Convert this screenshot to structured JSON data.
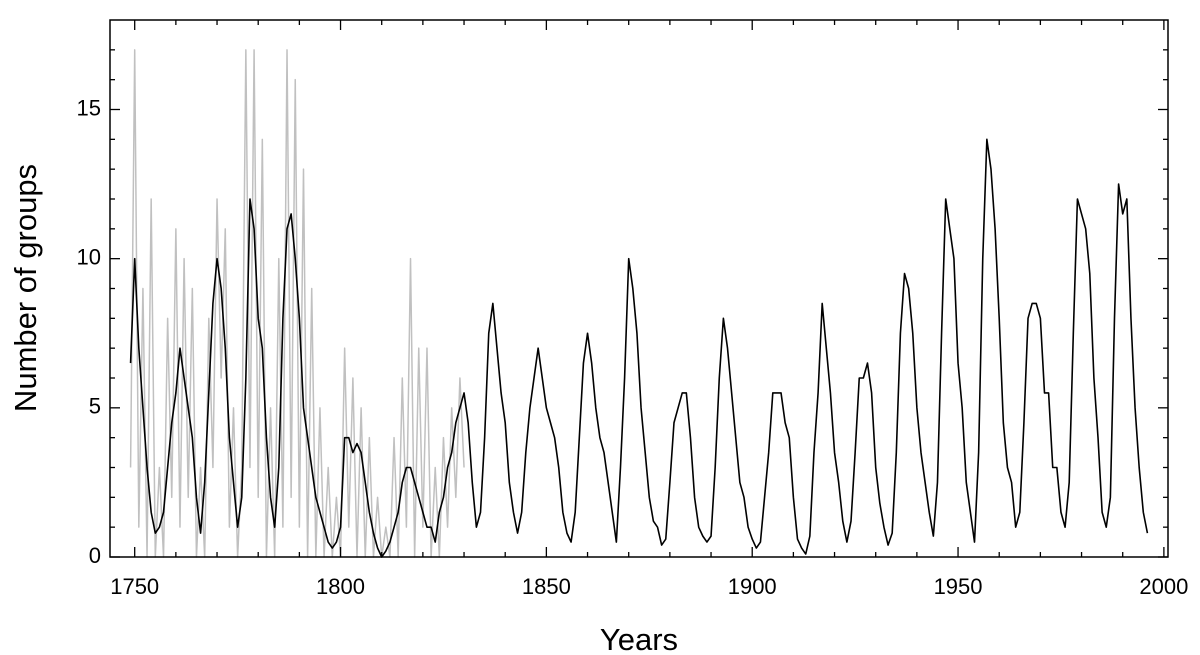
{
  "chart_data": {
    "type": "line",
    "xlabel": "Years",
    "ylabel": "Number of groups",
    "xlim": [
      1744,
      2001
    ],
    "ylim": [
      0,
      18
    ],
    "xticks": [
      1750,
      1800,
      1850,
      1900,
      1950,
      2000
    ],
    "yticks": [
      0,
      5,
      10,
      15
    ],
    "x_minor_ticks": [
      1760,
      1770,
      1780,
      1790,
      1810,
      1820,
      1830,
      1840,
      1860,
      1870,
      1880,
      1890,
      1910,
      1920,
      1930,
      1940,
      1960,
      1970,
      1980,
      1990
    ],
    "y_minor_ticks": [
      1,
      2,
      3,
      4,
      6,
      7,
      8,
      9,
      11,
      12,
      13,
      14,
      16,
      17
    ],
    "series": [
      {
        "color": "#c0c0c0",
        "x": [
          1749,
          1750,
          1751,
          1752,
          1753,
          1754,
          1755,
          1756,
          1757,
          1758,
          1759,
          1760,
          1761,
          1762,
          1763,
          1764,
          1765,
          1766,
          1767,
          1768,
          1769,
          1770,
          1771,
          1772,
          1773,
          1774,
          1775,
          1776,
          1777,
          1778,
          1779,
          1780,
          1781,
          1782,
          1783,
          1784,
          1785,
          1786,
          1787,
          1788,
          1789,
          1790,
          1791,
          1792,
          1793,
          1794,
          1795,
          1796,
          1797,
          1798,
          1799,
          1800,
          1801,
          1802,
          1803,
          1804,
          1805,
          1806,
          1807,
          1808,
          1809,
          1810,
          1811,
          1812,
          1813,
          1814,
          1815,
          1816,
          1817,
          1818,
          1819,
          1820,
          1821,
          1822,
          1823,
          1824,
          1825,
          1826,
          1827,
          1828,
          1829,
          1830
        ],
        "values": [
          3,
          17,
          1,
          9,
          0,
          12,
          0,
          3,
          0,
          8,
          2,
          11,
          1,
          10,
          2,
          9,
          0,
          3,
          0,
          8,
          3,
          12,
          6,
          11,
          1,
          5,
          0,
          3,
          17,
          3,
          17,
          2,
          14,
          0,
          5,
          0,
          10,
          1,
          17,
          2,
          16,
          1,
          13,
          0,
          9,
          0,
          5,
          0,
          3,
          0,
          2,
          0,
          7,
          1,
          6,
          0,
          5,
          0,
          4,
          0,
          2,
          0,
          1,
          0,
          4,
          0,
          6,
          1,
          10,
          0,
          7,
          1,
          7,
          0,
          3,
          0,
          4,
          1,
          5,
          2,
          6,
          3
        ]
      },
      {
        "color": "#000000",
        "x": [
          1749,
          1750,
          1751,
          1752,
          1753,
          1754,
          1755,
          1756,
          1757,
          1758,
          1759,
          1760,
          1761,
          1762,
          1763,
          1764,
          1765,
          1766,
          1767,
          1768,
          1769,
          1770,
          1771,
          1772,
          1773,
          1774,
          1775,
          1776,
          1777,
          1778,
          1779,
          1780,
          1781,
          1782,
          1783,
          1784,
          1785,
          1786,
          1787,
          1788,
          1789,
          1790,
          1791,
          1792,
          1793,
          1794,
          1795,
          1796,
          1797,
          1798,
          1799,
          1800,
          1801,
          1802,
          1803,
          1804,
          1805,
          1806,
          1807,
          1808,
          1809,
          1810,
          1811,
          1812,
          1813,
          1814,
          1815,
          1816,
          1817,
          1818,
          1819,
          1820,
          1821,
          1822,
          1823,
          1824,
          1825,
          1826,
          1827,
          1828,
          1829,
          1830,
          1831,
          1832,
          1833,
          1834,
          1835,
          1836,
          1837,
          1838,
          1839,
          1840,
          1841,
          1842,
          1843,
          1844,
          1845,
          1846,
          1847,
          1848,
          1849,
          1850,
          1851,
          1852,
          1853,
          1854,
          1855,
          1856,
          1857,
          1858,
          1859,
          1860,
          1861,
          1862,
          1863,
          1864,
          1865,
          1866,
          1867,
          1868,
          1869,
          1870,
          1871,
          1872,
          1873,
          1874,
          1875,
          1876,
          1877,
          1878,
          1879,
          1880,
          1881,
          1882,
          1883,
          1884,
          1885,
          1886,
          1887,
          1888,
          1889,
          1890,
          1891,
          1892,
          1893,
          1894,
          1895,
          1896,
          1897,
          1898,
          1899,
          1900,
          1901,
          1902,
          1903,
          1904,
          1905,
          1906,
          1907,
          1908,
          1909,
          1910,
          1911,
          1912,
          1913,
          1914,
          1915,
          1916,
          1917,
          1918,
          1919,
          1920,
          1921,
          1922,
          1923,
          1924,
          1925,
          1926,
          1927,
          1928,
          1929,
          1930,
          1931,
          1932,
          1933,
          1934,
          1935,
          1936,
          1937,
          1938,
          1939,
          1940,
          1941,
          1942,
          1943,
          1944,
          1945,
          1946,
          1947,
          1948,
          1949,
          1950,
          1951,
          1952,
          1953,
          1954,
          1955,
          1956,
          1957,
          1958,
          1959,
          1960,
          1961,
          1962,
          1963,
          1964,
          1965,
          1966,
          1967,
          1968,
          1969,
          1970,
          1971,
          1972,
          1973,
          1974,
          1975,
          1976,
          1977,
          1978,
          1979,
          1980,
          1981,
          1982,
          1983,
          1984,
          1985,
          1986,
          1987,
          1988,
          1989,
          1990,
          1991,
          1992,
          1993,
          1994,
          1995,
          1996
        ],
        "values": [
          6.5,
          10,
          7,
          5,
          3,
          1.5,
          0.8,
          1,
          1.5,
          3,
          4.5,
          5.5,
          7,
          6,
          5,
          4,
          2,
          0.8,
          2.5,
          5.5,
          8.5,
          10,
          9,
          7,
          4,
          2.5,
          1,
          2,
          6,
          12,
          11,
          8,
          7,
          4,
          2,
          1,
          3,
          8,
          11,
          11.5,
          10,
          8,
          5,
          4,
          3,
          2,
          1.5,
          1,
          0.5,
          0.3,
          0.5,
          1,
          4,
          4,
          3.5,
          3.8,
          3.5,
          2.5,
          1.5,
          0.8,
          0.3,
          0,
          0.2,
          0.5,
          1,
          1.5,
          2.5,
          3,
          3,
          2.5,
          2,
          1.5,
          1,
          1,
          0.5,
          1.5,
          2,
          3,
          3.5,
          4.5,
          5,
          5.5,
          4.5,
          2.5,
          1,
          1.5,
          4,
          7.5,
          8.5,
          7,
          5.5,
          4.5,
          2.5,
          1.5,
          0.8,
          1.5,
          3.5,
          5,
          6,
          7,
          6,
          5,
          4.5,
          4,
          3,
          1.5,
          0.8,
          0.5,
          1.5,
          4,
          6.5,
          7.5,
          6.5,
          5,
          4,
          3.5,
          2.5,
          1.5,
          0.5,
          3,
          6,
          10,
          9,
          7.5,
          5,
          3.5,
          2,
          1.2,
          1,
          0.4,
          0.6,
          2.5,
          4.5,
          5,
          5.5,
          5.5,
          4,
          2,
          1,
          0.7,
          0.5,
          0.7,
          3,
          6,
          8,
          7,
          5.5,
          4,
          2.5,
          2,
          1,
          0.6,
          0.3,
          0.5,
          2,
          3.5,
          5.5,
          5.5,
          5.5,
          4.5,
          4,
          2,
          0.6,
          0.3,
          0.1,
          0.7,
          3.5,
          5.5,
          8.5,
          7,
          5.5,
          3.5,
          2.5,
          1.2,
          0.5,
          1.2,
          3.5,
          6,
          6,
          6.5,
          5.5,
          3,
          1.8,
          1,
          0.4,
          0.8,
          3.5,
          7.5,
          9.5,
          9,
          7.5,
          5,
          3.5,
          2.5,
          1.5,
          0.7,
          2.5,
          7.5,
          12,
          11,
          10,
          6.5,
          5,
          2.5,
          1.5,
          0.5,
          3.5,
          10,
          14,
          13,
          11,
          8,
          4.5,
          3,
          2.5,
          1,
          1.5,
          4.5,
          8,
          8.5,
          8.5,
          8,
          5.5,
          5.5,
          3,
          3,
          1.5,
          1,
          2.5,
          7.5,
          12,
          11.5,
          11,
          9.5,
          6,
          4,
          1.5,
          1,
          2,
          8,
          12.5,
          11.5,
          12,
          8,
          5,
          3,
          1.5,
          0.8
        ]
      }
    ]
  }
}
